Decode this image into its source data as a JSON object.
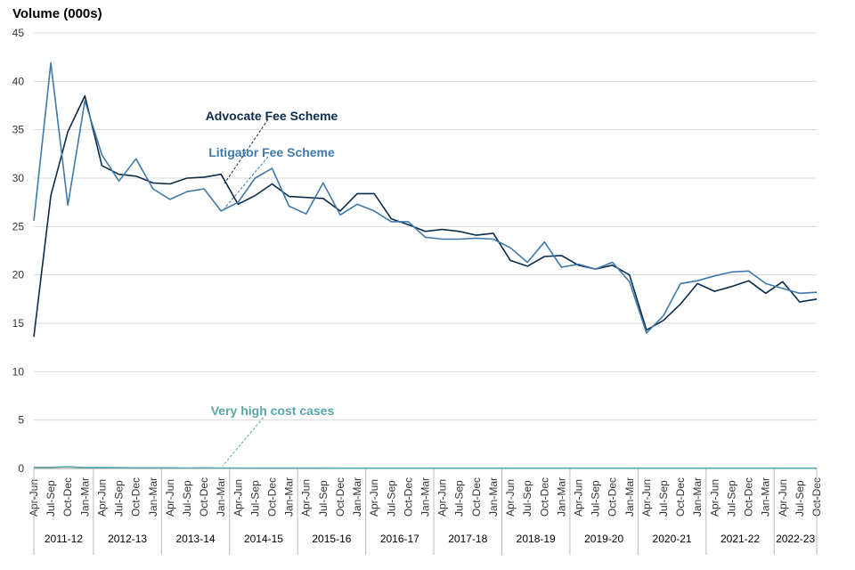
{
  "chart_data": {
    "type": "line",
    "ylabel": "Volume (000s)",
    "ylim": [
      0,
      45
    ],
    "yticks": [
      "0",
      "5",
      "10",
      "15",
      "20",
      "25",
      "30",
      "35",
      "40",
      "45"
    ],
    "grid": true,
    "quarters": [
      "Apr-Jun",
      "Jul-Sep",
      "Oct-Dec",
      "Jan-Mar"
    ],
    "x_labels": [
      "Apr-Jun",
      "Jul-Sep",
      "Oct-Dec",
      "Jan-Mar",
      "Apr-Jun",
      "Jul-Sep",
      "Oct-Dec",
      "Jan-Mar",
      "Apr-Jun",
      "Jul-Sep",
      "Oct-Dec",
      "Jan-Mar",
      "Apr-Jun",
      "Jul-Sep",
      "Oct-Dec",
      "Jan-Mar",
      "Apr-Jun",
      "Jul-Sep",
      "Oct-Dec",
      "Jan-Mar",
      "Apr-Jun",
      "Jul-Sep",
      "Oct-Dec",
      "Jan-Mar",
      "Apr-Jun",
      "Jul-Sep",
      "Oct-Dec",
      "Jan-Mar",
      "Apr-Jun",
      "Jul-Sep",
      "Oct-Dec",
      "Jan-Mar",
      "Apr-Jun",
      "Jul-Sep",
      "Oct-Dec",
      "Jan-Mar",
      "Apr-Jun",
      "Jul-Sep",
      "Oct-Dec",
      "Jan-Mar",
      "Apr-Jun",
      "Jul-Sep",
      "Oct-Dec",
      "Jan-Mar",
      "Apr-Jun",
      "Jul-Sep",
      "Oct-Dec"
    ],
    "years": [
      "2011-12",
      "2012-13",
      "2013-14",
      "2014-15",
      "2015-16",
      "2016-17",
      "2017-18",
      "2018-19",
      "2019-20",
      "2020-21",
      "2021-22",
      "2022-23"
    ],
    "series": [
      {
        "name": "Advocate Fee Scheme",
        "color": "#0b2c4a",
        "label_color": "#0b2c4a",
        "values": [
          13.6,
          28.2,
          34.8,
          38.5,
          31.3,
          30.4,
          30.2,
          29.5,
          29.4,
          30.0,
          30.1,
          30.4,
          27.3,
          28.2,
          29.4,
          28.1,
          28.0,
          27.9,
          26.6,
          28.4,
          28.4,
          25.8,
          25.2,
          24.5,
          24.7,
          24.5,
          24.1,
          24.3,
          21.5,
          20.9,
          21.9,
          22.0,
          21.0,
          20.6,
          21.0,
          20.0,
          14.3,
          15.3,
          17.0,
          19.1,
          18.3,
          18.8,
          19.4,
          18.1,
          19.3,
          17.2,
          17.5
        ]
      },
      {
        "name": "Litigator Fee Scheme",
        "color": "#3f79ab",
        "label_color": "#3f79ab",
        "values": [
          25.6,
          41.9,
          27.2,
          38.0,
          32.4,
          29.7,
          32.0,
          28.9,
          27.8,
          28.6,
          28.9,
          26.6,
          27.5,
          30.0,
          31.0,
          27.1,
          26.3,
          29.5,
          26.2,
          27.3,
          26.6,
          25.5,
          25.5,
          23.9,
          23.7,
          23.7,
          23.8,
          23.7,
          22.8,
          21.3,
          23.4,
          20.8,
          21.1,
          20.6,
          21.3,
          19.3,
          14.0,
          15.8,
          19.1,
          19.4,
          19.9,
          20.3,
          20.4,
          19.1,
          18.6,
          18.1,
          18.2
        ]
      },
      {
        "name": "Very high cost cases",
        "color": "#5ba7a7",
        "label_color": "#5ba7a7",
        "values": [
          0.12,
          0.12,
          0.18,
          0.1,
          0.1,
          0.08,
          0.06,
          0.06,
          0.06,
          0.05,
          0.06,
          0.05,
          0.05,
          0.04,
          0.04,
          0.04,
          0.04,
          0.04,
          0.03,
          0.03,
          0.03,
          0.03,
          0.03,
          0.03,
          0.03,
          0.03,
          0.03,
          0.03,
          0.03,
          0.03,
          0.03,
          0.03,
          0.03,
          0.03,
          0.03,
          0.03,
          0.03,
          0.03,
          0.03,
          0.03,
          0.03,
          0.03,
          0.03,
          0.03,
          0.03,
          0.03,
          0.03
        ]
      }
    ]
  }
}
